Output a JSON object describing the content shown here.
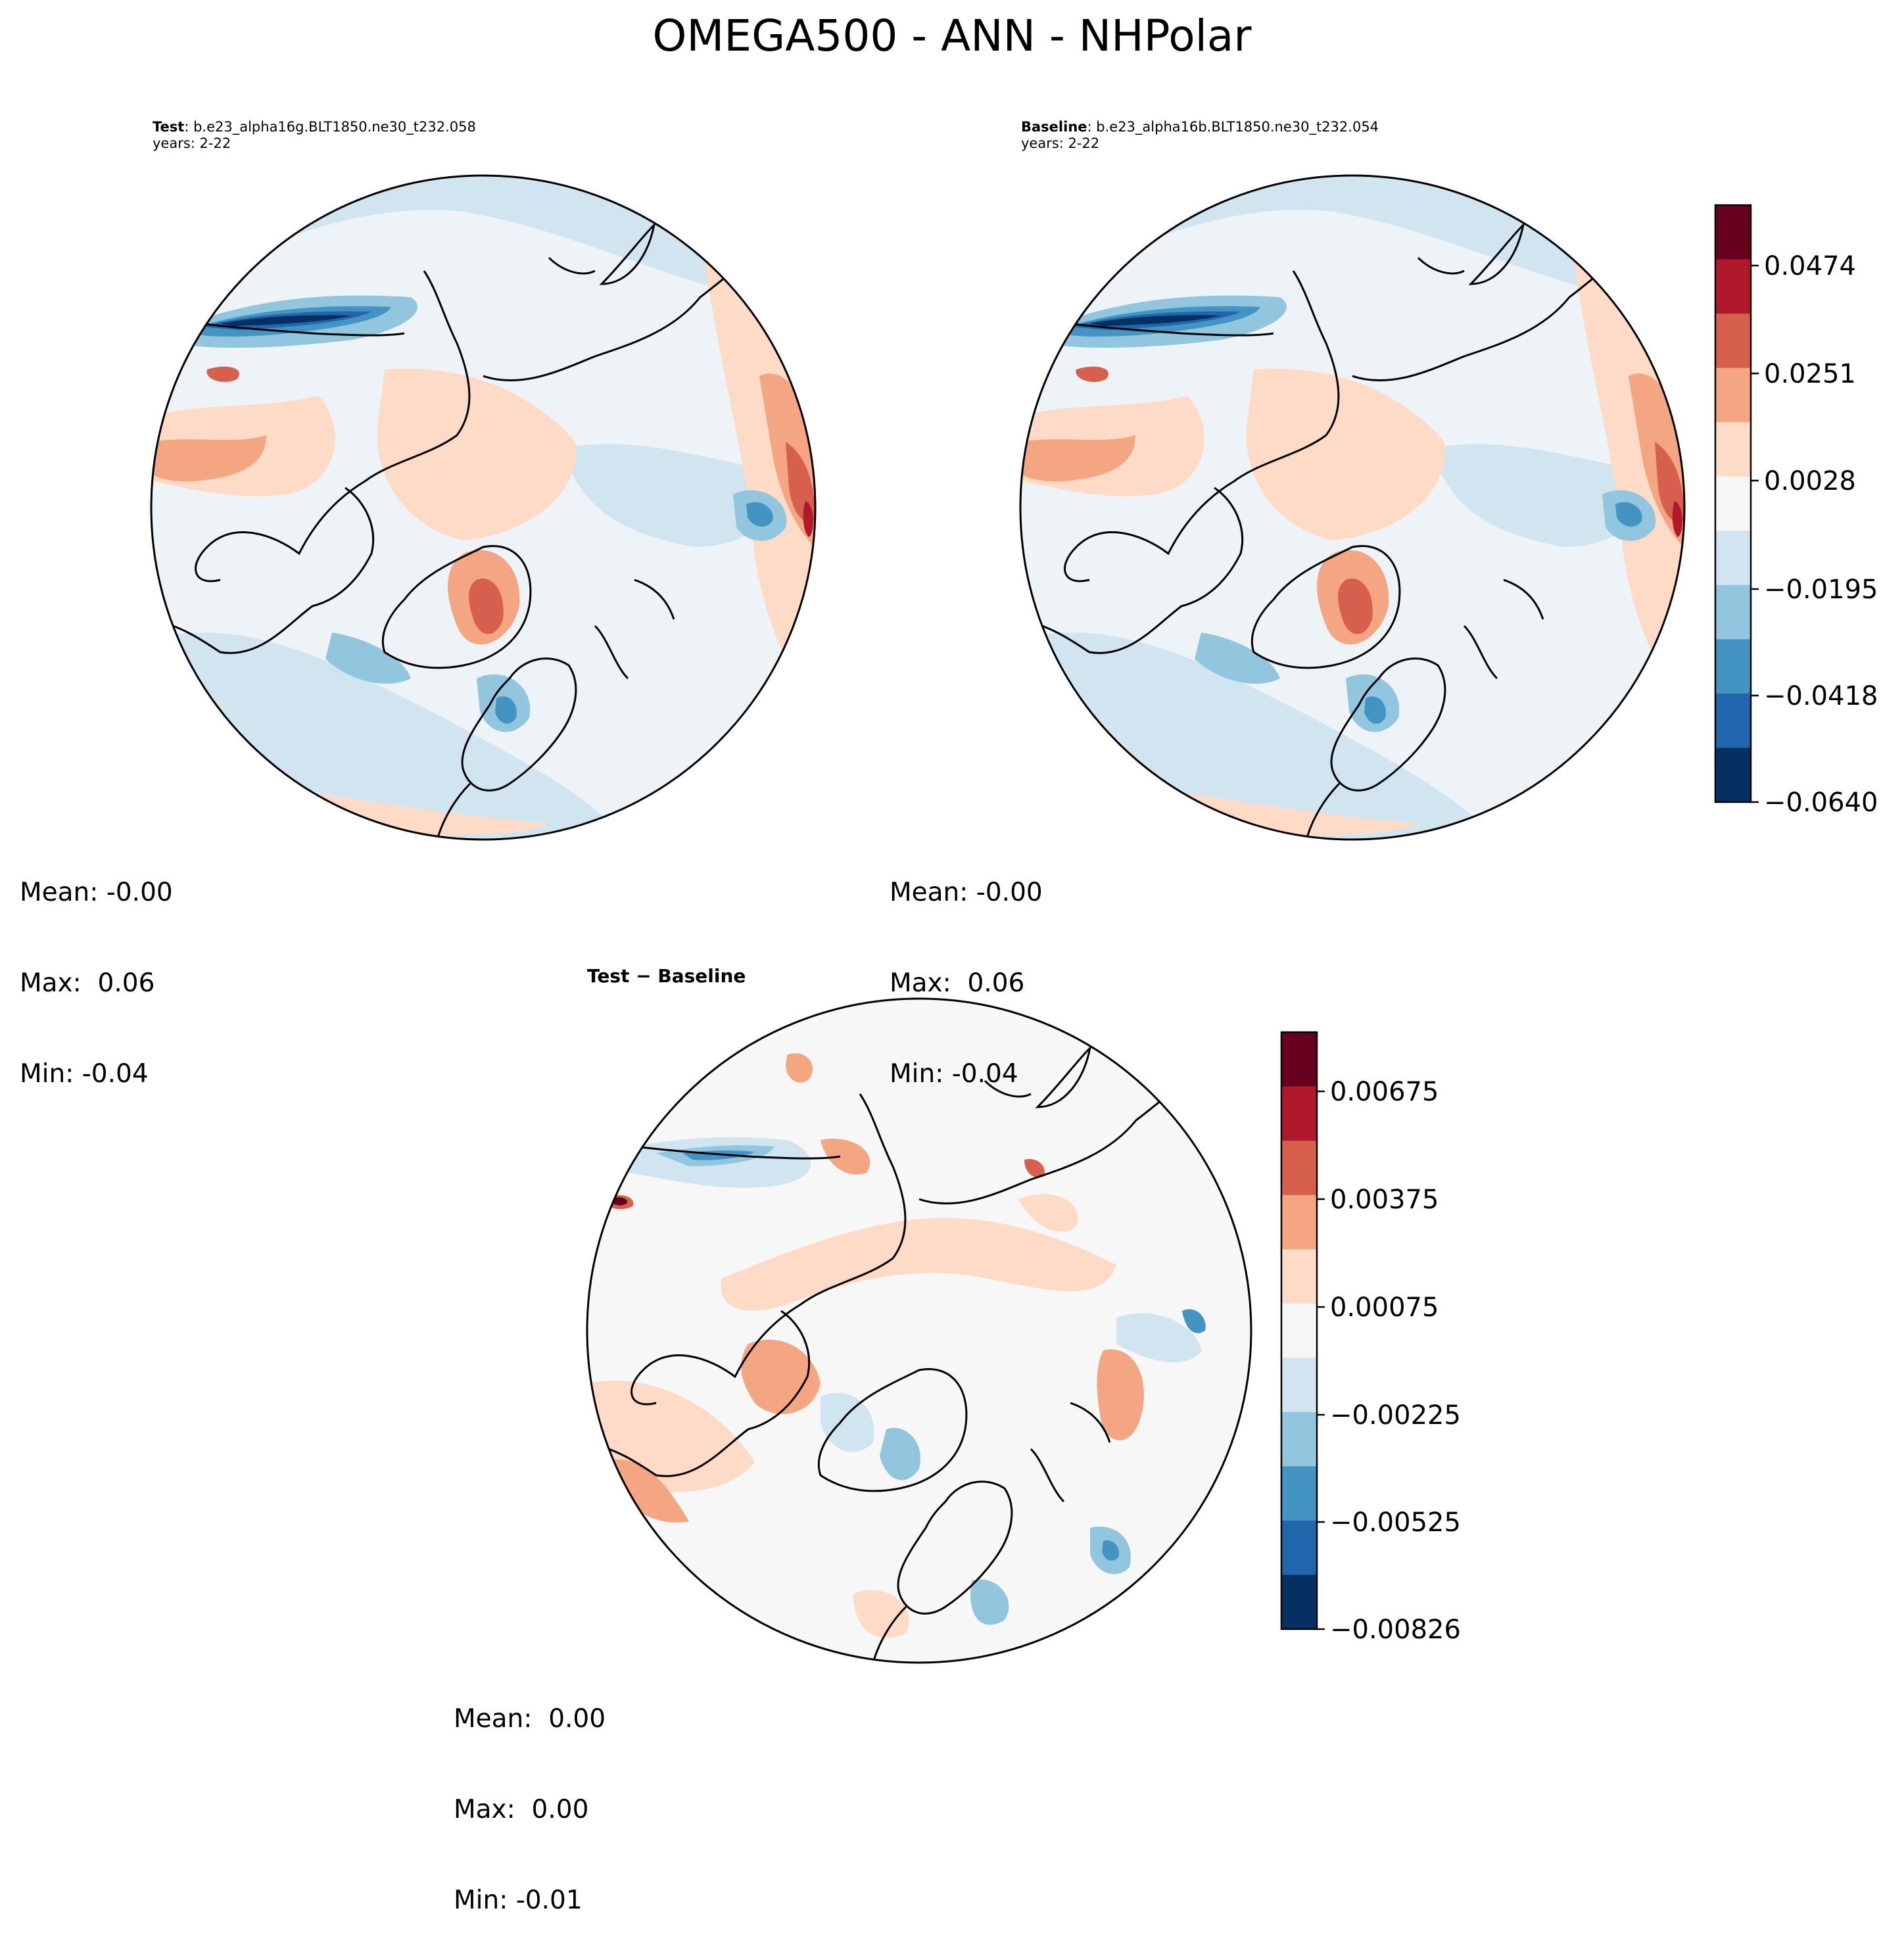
{
  "title": "OMEGA500 - ANN - NHPolar",
  "panels": {
    "test": {
      "title_bold": "Test",
      "title_rest": ": b.e23_alpha16g.BLT1850.ne30_t232.058",
      "years": "years: 2-22",
      "stats": {
        "mean": "Mean: -0.00",
        "max": "Max:  0.06",
        "min": "Min: -0.04"
      }
    },
    "baseline": {
      "title_bold": "Baseline",
      "title_rest": ": b.e23_alpha16b.BLT1850.ne30_t232.054",
      "years": "years: 2-22",
      "stats": {
        "mean": "Mean: -0.00",
        "max": "Max:  0.06",
        "min": "Min: -0.04"
      }
    },
    "diff": {
      "title": "Test − Baseline",
      "stats": {
        "mean": "Mean:  0.00",
        "max": "Max:  0.00",
        "min": "Min: -0.01"
      }
    }
  },
  "colorbars": {
    "main": {
      "ticks": [
        "0.0474",
        "0.0251",
        "0.0028",
        "−0.0195",
        "−0.0418",
        "−0.0640"
      ],
      "colors": [
        "#67001f",
        "#b2182b",
        "#d6604d",
        "#f4a582",
        "#fddbc7",
        "#f7f7f7",
        "#d1e5f0",
        "#92c5de",
        "#4393c3",
        "#2166ac",
        "#053061"
      ]
    },
    "diff": {
      "ticks": [
        "0.00675",
        "0.00375",
        "0.00075",
        "−0.00225",
        "−0.00525",
        "−0.00826"
      ],
      "colors": [
        "#67001f",
        "#b2182b",
        "#d6604d",
        "#f4a582",
        "#fddbc7",
        "#f7f7f7",
        "#d1e5f0",
        "#92c5de",
        "#4393c3",
        "#2166ac",
        "#053061"
      ]
    }
  }
}
